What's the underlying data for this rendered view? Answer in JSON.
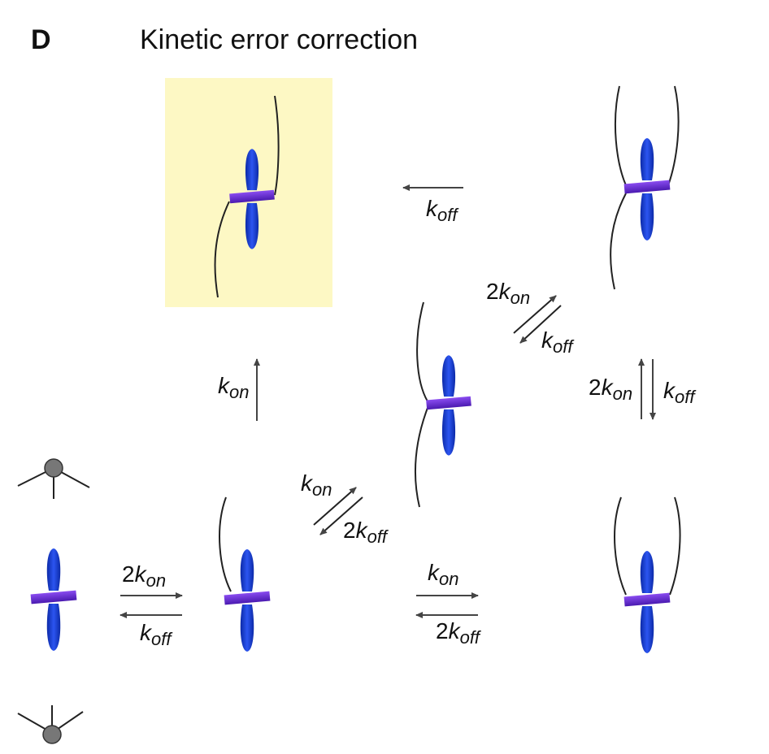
{
  "figure": {
    "panel_letter": "D",
    "title": "Kinetic error correction"
  },
  "colors": {
    "highlight": "#fdf8c4",
    "chromosome_blue": "#1f3fd6",
    "kinetochore_purple": "#6a2bd8",
    "microtubule": "#222222",
    "arrow": "#444444",
    "pole_gray": "#777777"
  },
  "rates": {
    "koff_top": {
      "coef": "",
      "k": "k",
      "sub": "off"
    },
    "kon_left_up": {
      "coef": "",
      "k": "k",
      "sub": "on"
    },
    "two_kon_diag_upper": {
      "coef": "2",
      "k": "k",
      "sub": "on"
    },
    "koff_diag_upper": {
      "coef": "",
      "k": "k",
      "sub": "off"
    },
    "two_kon_right": {
      "coef": "2",
      "k": "k",
      "sub": "on"
    },
    "koff_right": {
      "coef": "",
      "k": "k",
      "sub": "off"
    },
    "kon_diag_lower": {
      "coef": "",
      "k": "k",
      "sub": "on"
    },
    "two_koff_diag_lower": {
      "coef": "2",
      "k": "k",
      "sub": "off"
    },
    "two_kon_bottom_left": {
      "coef": "2",
      "k": "k",
      "sub": "on"
    },
    "koff_bottom_left": {
      "coef": "",
      "k": "k",
      "sub": "off"
    },
    "kon_bottom_right": {
      "coef": "",
      "k": "k",
      "sub": "on"
    },
    "two_koff_bottom_right": {
      "coef": "2",
      "k": "k",
      "sub": "off"
    }
  },
  "icons": {
    "pole_top": "spindle-pole-icon",
    "pole_bottom": "spindle-pole-icon",
    "chromosome": "chromosome-icon"
  }
}
